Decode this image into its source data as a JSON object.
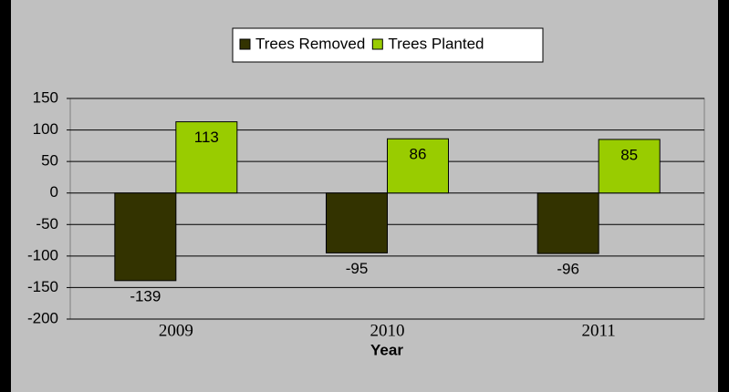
{
  "chart_data": {
    "type": "bar",
    "x_label": "Year",
    "categories": [
      "2009",
      "2010",
      "2011"
    ],
    "series": [
      {
        "name": "Trees Removed",
        "color": "#333300",
        "values": [
          -139,
          -95,
          -96
        ]
      },
      {
        "name": "Trees Planted",
        "color": "#99cc00",
        "values": [
          113,
          86,
          85
        ]
      }
    ],
    "ylim": [
      -200,
      150
    ],
    "yticks": [
      -200,
      -150,
      -100,
      -50,
      0,
      50,
      100,
      150
    ],
    "grid": true
  }
}
